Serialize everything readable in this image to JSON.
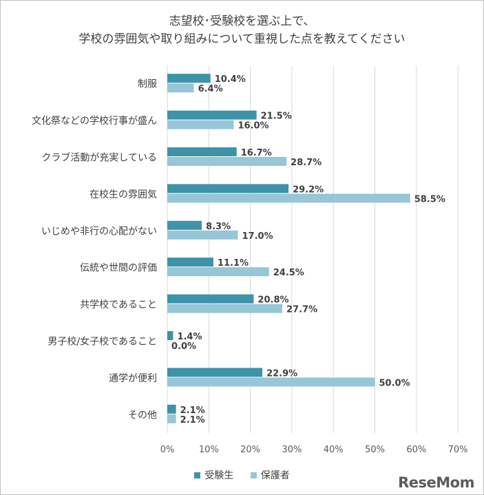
{
  "chart_data": {
    "type": "bar",
    "orientation": "horizontal",
    "title": [
      "志望校･受験校を選ぶ上で、",
      "学校の雰囲気や取り組みについて重視した点を教えてください"
    ],
    "categories": [
      "制服",
      "文化祭などの学校行事が盛ん",
      "クラブ活動が充実している",
      "在校生の雰囲気",
      "いじめや非行の心配がない",
      "伝統や世間の評価",
      "共学校であること",
      "男子校/女子校であること",
      "通学が便利",
      "その他"
    ],
    "series": [
      {
        "name": "受験生",
        "color": "#3d93a8",
        "values": [
          10.4,
          21.5,
          16.7,
          29.2,
          8.3,
          11.1,
          20.8,
          1.4,
          22.9,
          2.1
        ]
      },
      {
        "name": "保護者",
        "color": "#96c6d8",
        "values": [
          6.4,
          16.0,
          28.7,
          58.5,
          17.0,
          24.5,
          27.7,
          0.0,
          50.0,
          2.1
        ]
      }
    ],
    "data_labels": [
      [
        "10.4%",
        "21.5%",
        "16.7%",
        "29.2%",
        "8.3%",
        "11.1%",
        "20.8%",
        "1.4%",
        "22.9%",
        "2.1%"
      ],
      [
        "6.4%",
        "16.0%",
        "28.7%",
        "58.5%",
        "17.0%",
        "24.5%",
        "27.7%",
        "0.0%",
        "50.0%",
        "2.1%"
      ]
    ],
    "x_ticks": [
      "0%",
      "10%",
      "20%",
      "30%",
      "40%",
      "50%",
      "60%",
      "70%"
    ],
    "xlim": [
      0,
      70
    ],
    "grid": true,
    "legend": "bottom-center"
  },
  "logo": {
    "text_main": "ReseMom",
    "dot": "."
  }
}
